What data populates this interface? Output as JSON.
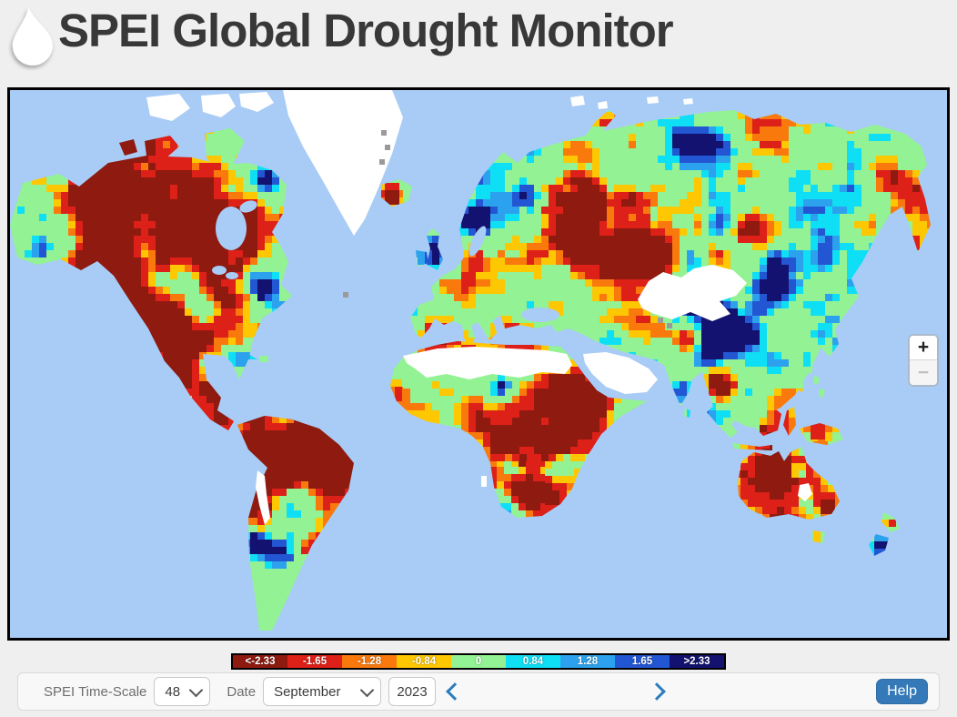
{
  "header": {
    "title": "SPEI Global Drought Monitor"
  },
  "map": {
    "zoom_in_label": "+",
    "zoom_out_label": "−",
    "ocean_color": "#a8ccf5",
    "nodata_color": "#ffffff"
  },
  "legend": {
    "classes": [
      {
        "label": "<-2.33",
        "color": "#8e1a10"
      },
      {
        "label": "-1.65",
        "color": "#dd2018"
      },
      {
        "label": "-1.28",
        "color": "#f9790d"
      },
      {
        "label": "-0.84",
        "color": "#fdc702"
      },
      {
        "label": "0",
        "color": "#93f293"
      },
      {
        "label": "0.84",
        "color": "#0fdff5"
      },
      {
        "label": "1.28",
        "color": "#2ca2ee"
      },
      {
        "label": "1.65",
        "color": "#2356d2"
      },
      {
        "label": ">2.33",
        "color": "#131270"
      }
    ]
  },
  "controls": {
    "timescale_label": "SPEI Time-Scale",
    "timescale_value": "48",
    "date_label": "Date",
    "month_value": "September",
    "year_value": "2023",
    "help_label": "Help"
  }
}
